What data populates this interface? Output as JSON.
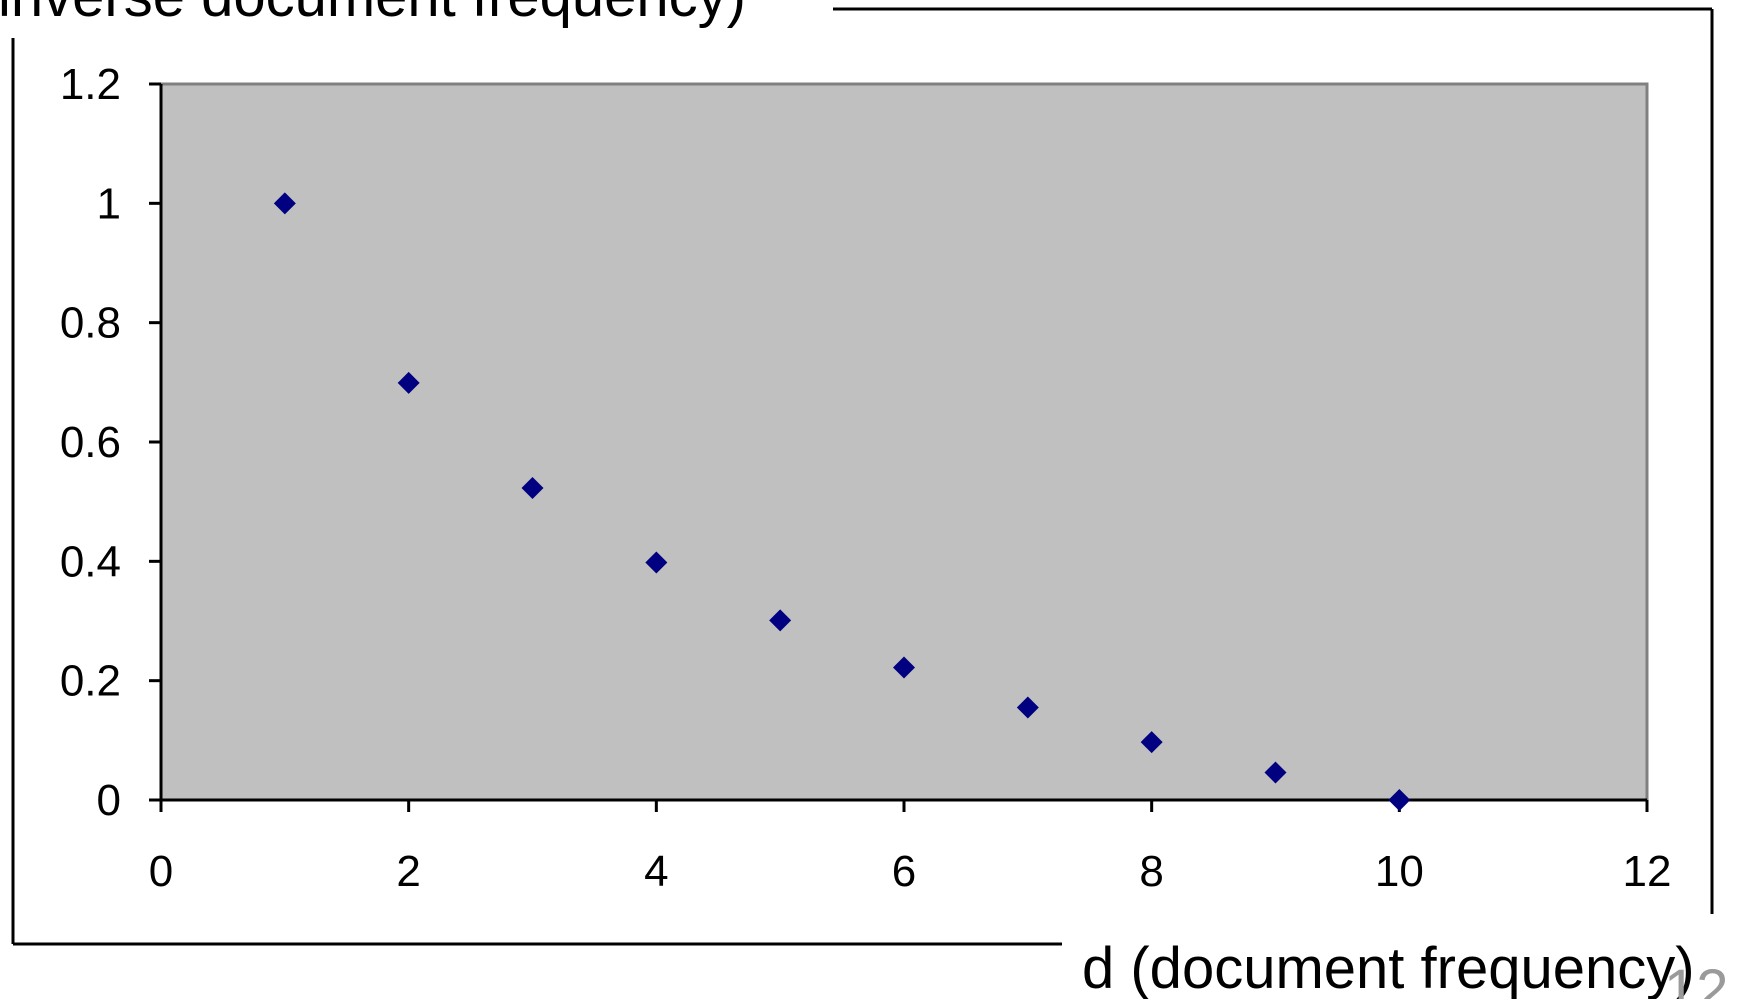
{
  "chart_data": {
    "type": "scatter",
    "title": "",
    "xlabel": "d (document frequency)",
    "ylabel": "inverse document frequency)",
    "xlim": [
      0,
      12
    ],
    "ylim": [
      0,
      1.2
    ],
    "x_ticks": [
      "0",
      "2",
      "4",
      "6",
      "8",
      "10",
      "12"
    ],
    "y_ticks": [
      "0",
      "0.2",
      "0.4",
      "0.6",
      "0.8",
      "1",
      "1.2"
    ],
    "grid": false,
    "legend": "none",
    "plot_background": "#c0c0c0",
    "marker_color": "#000080",
    "series": [
      {
        "x": [
          1,
          2,
          3,
          4,
          5,
          6,
          7,
          8,
          9,
          10
        ],
        "y": [
          1.0,
          0.699,
          0.523,
          0.398,
          0.301,
          0.222,
          0.155,
          0.097,
          0.046,
          0.0
        ]
      }
    ]
  },
  "page": {
    "number": "12"
  }
}
